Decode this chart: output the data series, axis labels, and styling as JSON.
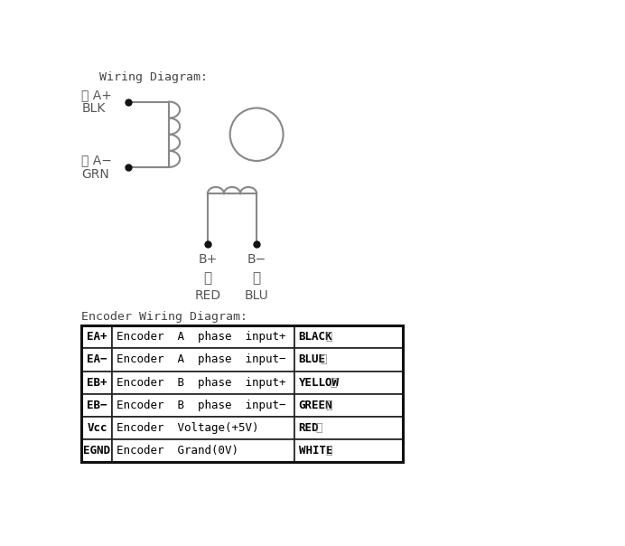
{
  "title_wiring": "Wiring Diagram:",
  "title_encoder": "Encoder Wiring Diagram:",
  "bg_color": "#ffffff",
  "line_color": "#888888",
  "dot_color": "#111111",
  "text_color_dark": "#555555",
  "text_color_label": "#333333",
  "A_plus_cn": "黑 A+",
  "A_plus_en": "BLK",
  "A_minus_cn": "维 A−",
  "A_minus_en": "GRN",
  "B_plus_sym": "B+",
  "B_plus_cn": "红",
  "B_plus_en": "RED",
  "B_minus_sym": "B−",
  "B_minus_cn": "兰",
  "B_minus_en": "BLU",
  "table_rows": [
    [
      "EA+",
      "Encoder  A  phase  input+",
      "BLACK",
      "黑"
    ],
    [
      "EA−",
      "Encoder  A  phase  input−",
      "BLUE",
      "蓝"
    ],
    [
      "EB+",
      "Encoder  B  phase  input+",
      "YELLOW",
      "黄"
    ],
    [
      "EB−",
      "Encoder  B  phase  input−",
      "GREEN",
      "维"
    ],
    [
      "Vcc",
      "Encoder  Voltage(+5V)",
      "RED",
      "红"
    ],
    [
      "EGND",
      "Encoder  Grand(0V)",
      "WHITE",
      "白"
    ]
  ]
}
